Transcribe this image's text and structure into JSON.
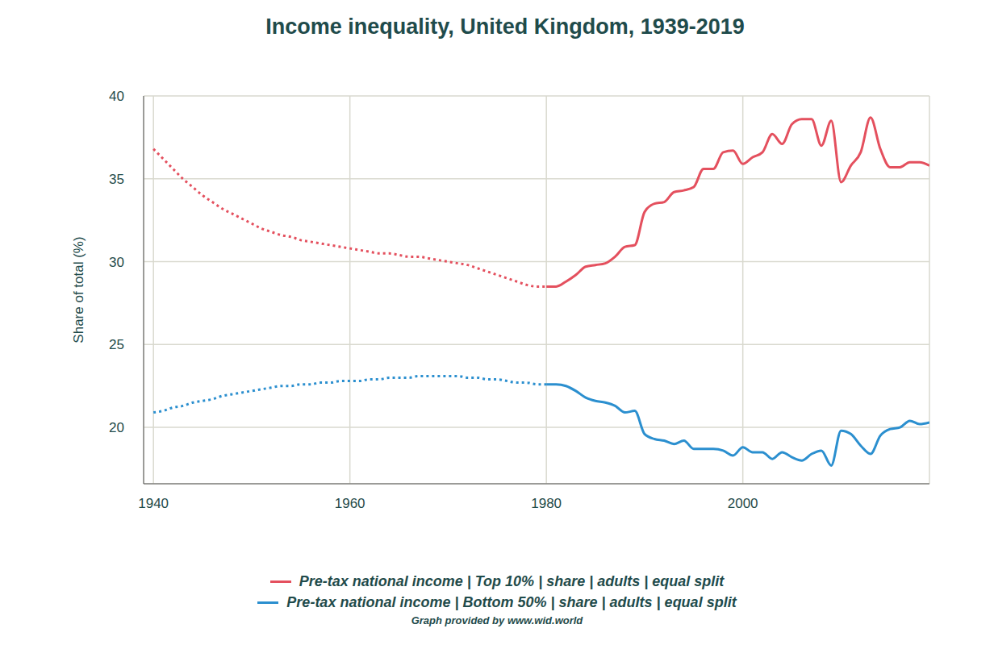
{
  "chart_data": {
    "type": "line",
    "title": "Income inequality, United Kingdom, 1939-2019",
    "y_label": "Share of total (%)",
    "caption": "Graph provided by www.wid.world",
    "grid": true,
    "legend": "bottom",
    "xlim": [
      1939,
      2019
    ],
    "xticks": [
      1940,
      1960,
      1980,
      2000
    ],
    "ylim": [
      16.6,
      40
    ],
    "yticks": [
      20,
      25,
      30,
      35,
      40
    ],
    "x": [
      1940,
      1941,
      1942,
      1943,
      1944,
      1945,
      1946,
      1947,
      1948,
      1949,
      1950,
      1951,
      1952,
      1953,
      1954,
      1955,
      1956,
      1957,
      1958,
      1959,
      1960,
      1961,
      1962,
      1963,
      1964,
      1965,
      1966,
      1967,
      1968,
      1969,
      1970,
      1971,
      1972,
      1973,
      1974,
      1975,
      1976,
      1977,
      1978,
      1979,
      1980,
      1981,
      1982,
      1983,
      1984,
      1985,
      1986,
      1987,
      1988,
      1989,
      1990,
      1991,
      1992,
      1993,
      1994,
      1995,
      1996,
      1997,
      1998,
      1999,
      2000,
      2001,
      2002,
      2003,
      2004,
      2005,
      2006,
      2007,
      2008,
      2009,
      2010,
      2011,
      2012,
      2013,
      2014,
      2015,
      2016,
      2017,
      2018,
      2019
    ],
    "series": [
      {
        "name": "Pre-tax national income | Top 10% | share | adults | equal split",
        "color": "#e4505e",
        "line_style": "dotted",
        "values": [
          36.8,
          36.2,
          35.6,
          35.0,
          34.5,
          34.0,
          33.6,
          33.2,
          32.9,
          32.6,
          32.3,
          32.0,
          31.8,
          31.6,
          31.5,
          31.3,
          31.2,
          31.1,
          31.0,
          30.9,
          30.8,
          30.7,
          30.6,
          30.5,
          30.5,
          30.4,
          30.3,
          30.3,
          30.2,
          30.1,
          30.0,
          29.9,
          29.8,
          29.6,
          29.4,
          29.2,
          29.0,
          28.8,
          28.6,
          28.5,
          28.5,
          null,
          null,
          null,
          null,
          null,
          null,
          null,
          null,
          null,
          null,
          null,
          null,
          null,
          null,
          null,
          null,
          null,
          null,
          null,
          null,
          null,
          null,
          null,
          null,
          null,
          null,
          null,
          null,
          null,
          null,
          null,
          null,
          null,
          null,
          null,
          null,
          null,
          null,
          null
        ]
      },
      {
        "name": "Pre-tax national income | Top 10% | share | adults | equal split",
        "color": "#e4505e",
        "line_style": "solid",
        "values": [
          null,
          null,
          null,
          null,
          null,
          null,
          null,
          null,
          null,
          null,
          null,
          null,
          null,
          null,
          null,
          null,
          null,
          null,
          null,
          null,
          null,
          null,
          null,
          null,
          null,
          null,
          null,
          null,
          null,
          null,
          null,
          null,
          null,
          null,
          null,
          null,
          null,
          null,
          null,
          null,
          28.5,
          28.5,
          28.8,
          29.2,
          29.7,
          29.8,
          29.9,
          30.3,
          30.9,
          31.0,
          33.0,
          33.5,
          33.6,
          34.2,
          34.3,
          34.5,
          35.6,
          35.6,
          36.6,
          36.7,
          35.9,
          36.3,
          36.6,
          37.7,
          37.1,
          38.3,
          38.6,
          38.6,
          37.0,
          38.5,
          34.8,
          35.8,
          36.6,
          38.7,
          36.8,
          35.7,
          35.7,
          36.0,
          36.0,
          35.8
        ]
      },
      {
        "name": "Pre-tax national income | Bottom 50% | share | adults | equal split",
        "color": "#2b8fcf",
        "line_style": "dotted",
        "values": [
          20.9,
          21.0,
          21.2,
          21.3,
          21.5,
          21.6,
          21.7,
          21.9,
          22.0,
          22.1,
          22.2,
          22.3,
          22.4,
          22.5,
          22.5,
          22.6,
          22.6,
          22.7,
          22.7,
          22.8,
          22.8,
          22.8,
          22.9,
          22.9,
          23.0,
          23.0,
          23.0,
          23.1,
          23.1,
          23.1,
          23.1,
          23.1,
          23.0,
          23.0,
          22.9,
          22.9,
          22.8,
          22.7,
          22.7,
          22.6,
          22.6,
          null,
          null,
          null,
          null,
          null,
          null,
          null,
          null,
          null,
          null,
          null,
          null,
          null,
          null,
          null,
          null,
          null,
          null,
          null,
          null,
          null,
          null,
          null,
          null,
          null,
          null,
          null,
          null,
          null,
          null,
          null,
          null,
          null,
          null,
          null,
          null,
          null,
          null,
          null
        ]
      },
      {
        "name": "Pre-tax national income | Bottom 50% | share | adults | equal split",
        "color": "#2b8fcf",
        "line_style": "solid",
        "values": [
          null,
          null,
          null,
          null,
          null,
          null,
          null,
          null,
          null,
          null,
          null,
          null,
          null,
          null,
          null,
          null,
          null,
          null,
          null,
          null,
          null,
          null,
          null,
          null,
          null,
          null,
          null,
          null,
          null,
          null,
          null,
          null,
          null,
          null,
          null,
          null,
          null,
          null,
          null,
          null,
          22.6,
          22.6,
          22.5,
          22.2,
          21.8,
          21.6,
          21.5,
          21.3,
          20.9,
          21.0,
          19.6,
          19.3,
          19.2,
          19.0,
          19.2,
          18.7,
          18.7,
          18.7,
          18.6,
          18.3,
          18.8,
          18.5,
          18.5,
          18.1,
          18.5,
          18.2,
          18.0,
          18.4,
          18.6,
          17.7,
          19.8,
          19.6,
          18.9,
          18.4,
          19.5,
          19.9,
          20.0,
          20.4,
          20.2,
          20.3
        ]
      }
    ]
  }
}
